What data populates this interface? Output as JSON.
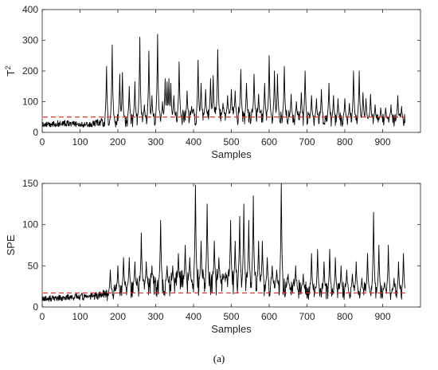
{
  "caption": "(a)",
  "colors": {
    "series": "#000000",
    "threshold": "#e8302a",
    "axes": "#262626"
  },
  "chart_data": [
    {
      "type": "line",
      "xlabel": "Samples",
      "ylabel_base": "T",
      "ylabel_sup": "2",
      "xlim": [
        0,
        1000
      ],
      "ylim": [
        0,
        400
      ],
      "xticks": [
        0,
        100,
        200,
        300,
        400,
        500,
        600,
        700,
        800,
        900
      ],
      "yticks": [
        0,
        100,
        200,
        300,
        400
      ],
      "grid": false,
      "threshold": 50,
      "n_samples": 960,
      "fault_start": 160,
      "baseline": [
        [
          0,
          25
        ],
        [
          60,
          30
        ],
        [
          120,
          25
        ],
        [
          160,
          35
        ],
        [
          300,
          45
        ],
        [
          500,
          55
        ],
        [
          700,
          45
        ],
        [
          960,
          40
        ]
      ],
      "peaks": [
        [
          170,
          215
        ],
        [
          185,
          285
        ],
        [
          205,
          190
        ],
        [
          212,
          195
        ],
        [
          230,
          150
        ],
        [
          245,
          165
        ],
        [
          258,
          310
        ],
        [
          270,
          90
        ],
        [
          282,
          265
        ],
        [
          290,
          120
        ],
        [
          305,
          320
        ],
        [
          318,
          100
        ],
        [
          325,
          175
        ],
        [
          330,
          165
        ],
        [
          335,
          175
        ],
        [
          340,
          160
        ],
        [
          348,
          120
        ],
        [
          362,
          230
        ],
        [
          383,
          135
        ],
        [
          395,
          85
        ],
        [
          412,
          235
        ],
        [
          420,
          160
        ],
        [
          432,
          140
        ],
        [
          445,
          175
        ],
        [
          452,
          185
        ],
        [
          464,
          270
        ],
        [
          478,
          95
        ],
        [
          490,
          120
        ],
        [
          500,
          140
        ],
        [
          510,
          135
        ],
        [
          525,
          205
        ],
        [
          540,
          160
        ],
        [
          560,
          190
        ],
        [
          572,
          125
        ],
        [
          588,
          160
        ],
        [
          600,
          250
        ],
        [
          614,
          200
        ],
        [
          622,
          190
        ],
        [
          640,
          215
        ],
        [
          658,
          125
        ],
        [
          672,
          100
        ],
        [
          685,
          130
        ],
        [
          695,
          200
        ],
        [
          712,
          120
        ],
        [
          725,
          110
        ],
        [
          738,
          140
        ],
        [
          758,
          160
        ],
        [
          770,
          120
        ],
        [
          782,
          110
        ],
        [
          800,
          110
        ],
        [
          812,
          95
        ],
        [
          823,
          200
        ],
        [
          838,
          200
        ],
        [
          848,
          130
        ],
        [
          856,
          110
        ],
        [
          868,
          125
        ],
        [
          880,
          90
        ],
        [
          895,
          80
        ],
        [
          908,
          80
        ],
        [
          922,
          90
        ],
        [
          940,
          120
        ],
        [
          950,
          85
        ]
      ]
    },
    {
      "type": "line",
      "xlabel": "Samples",
      "ylabel": "SPE",
      "xlim": [
        0,
        1000
      ],
      "ylim": [
        0,
        150
      ],
      "xticks": [
        0,
        100,
        200,
        300,
        400,
        500,
        600,
        700,
        800,
        900
      ],
      "yticks": [
        0,
        50,
        100,
        150
      ],
      "grid": false,
      "threshold": 17,
      "n_samples": 960,
      "fault_start": 160,
      "baseline": [
        [
          0,
          10
        ],
        [
          80,
          12
        ],
        [
          160,
          14
        ],
        [
          250,
          25
        ],
        [
          400,
          30
        ],
        [
          500,
          30
        ],
        [
          640,
          25
        ],
        [
          720,
          18
        ],
        [
          820,
          20
        ],
        [
          960,
          18
        ]
      ],
      "peaks": [
        [
          180,
          45
        ],
        [
          200,
          50
        ],
        [
          215,
          60
        ],
        [
          230,
          60
        ],
        [
          245,
          55
        ],
        [
          262,
          90
        ],
        [
          275,
          55
        ],
        [
          290,
          50
        ],
        [
          313,
          105
        ],
        [
          330,
          50
        ],
        [
          345,
          50
        ],
        [
          360,
          65
        ],
        [
          378,
          75
        ],
        [
          390,
          60
        ],
        [
          405,
          148
        ],
        [
          420,
          80
        ],
        [
          436,
          125
        ],
        [
          455,
          80
        ],
        [
          467,
          60
        ],
        [
          480,
          40
        ],
        [
          498,
          105
        ],
        [
          510,
          80
        ],
        [
          522,
          110
        ],
        [
          533,
          125
        ],
        [
          546,
          105
        ],
        [
          558,
          135
        ],
        [
          572,
          80
        ],
        [
          582,
          80
        ],
        [
          595,
          60
        ],
        [
          608,
          50
        ],
        [
          620,
          45
        ],
        [
          632,
          150
        ],
        [
          650,
          40
        ],
        [
          670,
          50
        ],
        [
          690,
          40
        ],
        [
          712,
          65
        ],
        [
          728,
          70
        ],
        [
          745,
          55
        ],
        [
          760,
          70
        ],
        [
          775,
          60
        ],
        [
          790,
          50
        ],
        [
          805,
          45
        ],
        [
          820,
          40
        ],
        [
          830,
          55
        ],
        [
          845,
          35
        ],
        [
          860,
          65
        ],
        [
          876,
          115
        ],
        [
          890,
          75
        ],
        [
          905,
          30
        ],
        [
          915,
          75
        ],
        [
          930,
          35
        ],
        [
          942,
          55
        ],
        [
          955,
          65
        ]
      ]
    }
  ]
}
